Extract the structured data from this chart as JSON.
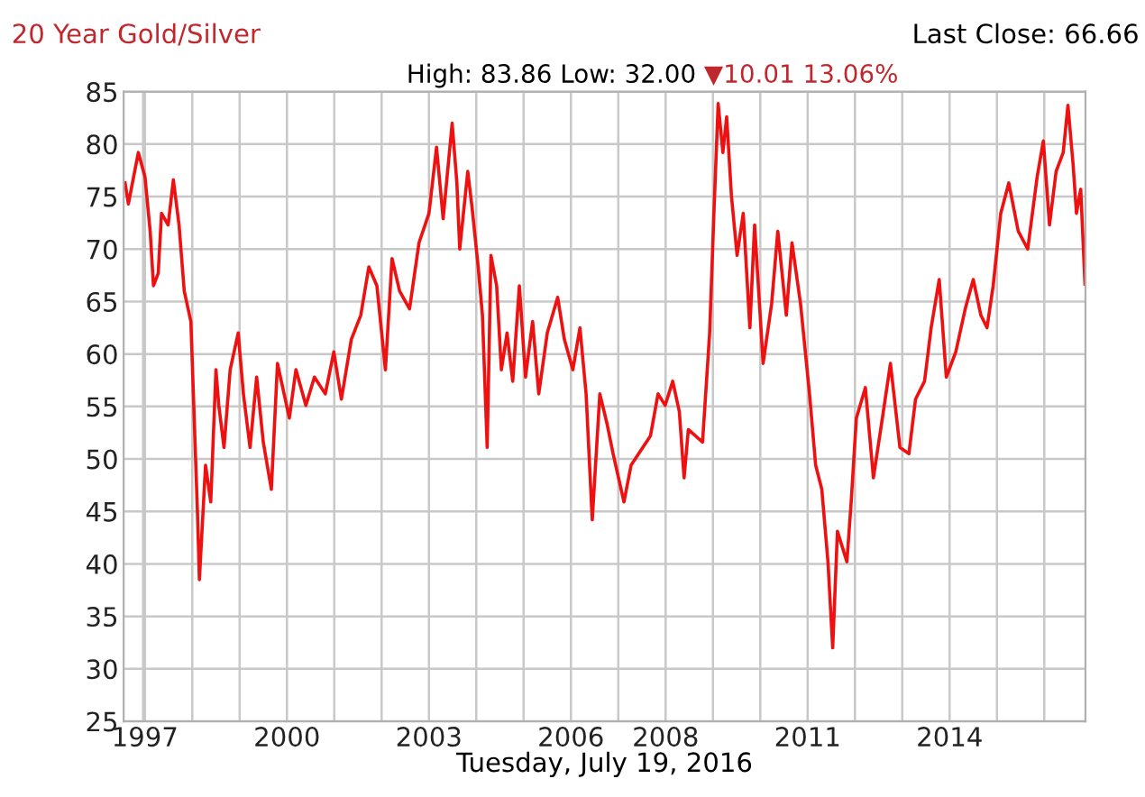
{
  "chart_data": {
    "type": "line",
    "title": "20 Year Gold/Silver",
    "xlabel": "Tuesday, July 19, 2016",
    "annotations": [
      "Last Close: 66.66",
      "High: 83.86 Low: 32.00",
      "▼10.01 13.06%"
    ],
    "xlim": [
      1996.55,
      2016.87
    ],
    "ylim": [
      25,
      85
    ],
    "xticks": [
      {
        "value": 1996.96,
        "label": null
      },
      {
        "value": 1997,
        "label": "1997"
      },
      {
        "value": 1998,
        "label": null
      },
      {
        "value": 1999,
        "label": null
      },
      2000,
      {
        "value": 2001,
        "label": null
      },
      {
        "value": 2002,
        "label": null
      },
      2003,
      {
        "value": 2004,
        "label": null
      },
      {
        "value": 2005,
        "label": null
      },
      2006,
      {
        "value": 2007,
        "label": null
      },
      2008,
      {
        "value": 2009,
        "label": null
      },
      {
        "value": 2010,
        "label": null
      },
      2011,
      {
        "value": 2012,
        "label": null
      },
      {
        "value": 2013,
        "label": null
      },
      2014,
      {
        "value": 2015,
        "label": null
      },
      {
        "value": 2016,
        "label": null
      }
    ],
    "yticks": [
      25,
      30,
      35,
      40,
      45,
      50,
      55,
      60,
      65,
      70,
      75,
      80,
      85
    ],
    "grid": true,
    "marker": "none",
    "line_style": "solid",
    "series": [
      {
        "color": "#ee1111",
        "x": [
          1996.58,
          1996.65,
          1996.86,
          1997.0,
          1997.11,
          1997.18,
          1997.28,
          1997.35,
          1997.49,
          1997.6,
          1997.72,
          1997.83,
          1997.97,
          1998.11,
          1998.15,
          1998.28,
          1998.39,
          1998.5,
          1998.56,
          1998.67,
          1998.8,
          1998.97,
          1999.08,
          1999.22,
          1999.36,
          1999.5,
          1999.67,
          1999.8,
          2000.05,
          2000.19,
          2000.4,
          2000.58,
          2000.81,
          2000.99,
          2001.15,
          2001.36,
          2001.56,
          2001.73,
          2001.9,
          2002.08,
          2002.22,
          2002.38,
          2002.59,
          2002.79,
          2003.0,
          2003.16,
          2003.3,
          2003.49,
          2003.59,
          2003.65,
          2003.82,
          2003.91,
          2004.04,
          2004.13,
          2004.23,
          2004.31,
          2004.43,
          2004.53,
          2004.65,
          2004.77,
          2004.91,
          2005.04,
          2005.19,
          2005.32,
          2005.5,
          2005.72,
          2005.86,
          2006.04,
          2006.19,
          2006.32,
          2006.45,
          2006.61,
          2006.76,
          2006.89,
          2007.12,
          2007.27,
          2007.43,
          2007.68,
          2007.84,
          2007.99,
          2008.15,
          2008.29,
          2008.39,
          2008.48,
          2008.78,
          2008.93,
          2009.02,
          2009.11,
          2009.21,
          2009.29,
          2009.39,
          2009.51,
          2009.64,
          2009.78,
          2009.88,
          2010.06,
          2010.24,
          2010.37,
          2010.55,
          2010.67,
          2010.85,
          2011.04,
          2011.17,
          2011.3,
          2011.43,
          2011.53,
          2011.63,
          2011.83,
          2011.92,
          2012.03,
          2012.22,
          2012.39,
          2012.58,
          2012.75,
          2012.95,
          2013.14,
          2013.28,
          2013.47,
          2013.61,
          2013.78,
          2013.93,
          2014.13,
          2014.33,
          2014.5,
          2014.66,
          2014.79,
          2014.92,
          2015.08,
          2015.25,
          2015.45,
          2015.65,
          2015.85,
          2015.98,
          2016.11,
          2016.25,
          2016.4,
          2016.5,
          2016.61,
          2016.68,
          2016.77,
          2016.86
        ],
        "values": [
          76.3,
          74.3,
          79.2,
          76.9,
          71.7,
          66.5,
          67.7,
          73.4,
          72.3,
          76.6,
          72.3,
          66.0,
          63.1,
          44.8,
          38.5,
          49.4,
          45.9,
          58.5,
          55.1,
          51.1,
          58.5,
          62.0,
          56.2,
          51.1,
          57.8,
          51.6,
          47.1,
          59.1,
          53.9,
          58.5,
          55.1,
          57.8,
          56.2,
          60.2,
          55.7,
          61.4,
          63.7,
          68.3,
          66.5,
          58.5,
          69.1,
          66.0,
          64.3,
          70.6,
          73.4,
          79.7,
          72.9,
          82.0,
          76.3,
          70.0,
          77.4,
          74.0,
          68.3,
          63.7,
          51.1,
          69.4,
          66.5,
          58.5,
          62.0,
          57.4,
          66.5,
          57.8,
          63.1,
          56.2,
          62.0,
          65.4,
          61.4,
          58.5,
          62.5,
          56.2,
          44.2,
          56.2,
          53.4,
          50.5,
          45.9,
          49.4,
          50.5,
          52.2,
          56.2,
          55.1,
          57.4,
          54.5,
          48.2,
          52.8,
          51.6,
          62.0,
          73.4,
          83.86,
          79.2,
          82.6,
          75.1,
          69.4,
          73.4,
          62.5,
          72.3,
          59.1,
          64.8,
          71.7,
          63.7,
          70.6,
          64.8,
          56.2,
          49.4,
          47.1,
          40.2,
          32.0,
          43.1,
          40.2,
          45.9,
          53.9,
          56.8,
          48.2,
          53.9,
          59.1,
          51.1,
          50.5,
          55.7,
          57.4,
          62.5,
          67.1,
          57.8,
          60.2,
          64.3,
          67.1,
          63.7,
          62.5,
          66.5,
          73.4,
          76.3,
          71.7,
          70.0,
          76.9,
          80.3,
          72.3,
          77.4,
          79.2,
          83.7,
          78.0,
          73.4,
          75.7,
          66.66
        ]
      }
    ]
  }
}
